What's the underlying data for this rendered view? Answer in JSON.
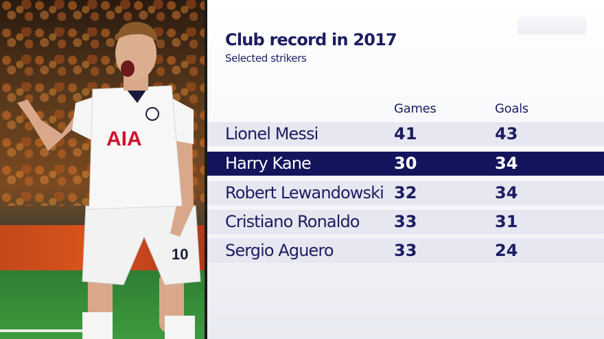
{
  "graphic": {
    "title": "Club record in 2017",
    "subtitle": "Selected strikers",
    "columns": {
      "games": "Games",
      "goals": "Goals"
    },
    "rows": [
      {
        "name": "Lionel Messi",
        "games": "41",
        "goals": "43",
        "highlighted": false
      },
      {
        "name": "Harry Kane",
        "games": "30",
        "goals": "34",
        "highlighted": true
      },
      {
        "name": "Robert Lewandowski",
        "games": "32",
        "goals": "34",
        "highlighted": false
      },
      {
        "name": "Cristiano Ronaldo",
        "games": "33",
        "goals": "31",
        "highlighted": false
      },
      {
        "name": "Sergio Aguero",
        "games": "33",
        "goals": "24",
        "highlighted": false
      }
    ]
  },
  "photo": {
    "shirt_sponsor": "AIA",
    "shirt_number": "10"
  },
  "colors": {
    "navy": "#1c1c62",
    "highlight_bar": "#14145c",
    "row_bg": "#e6e7f0"
  }
}
